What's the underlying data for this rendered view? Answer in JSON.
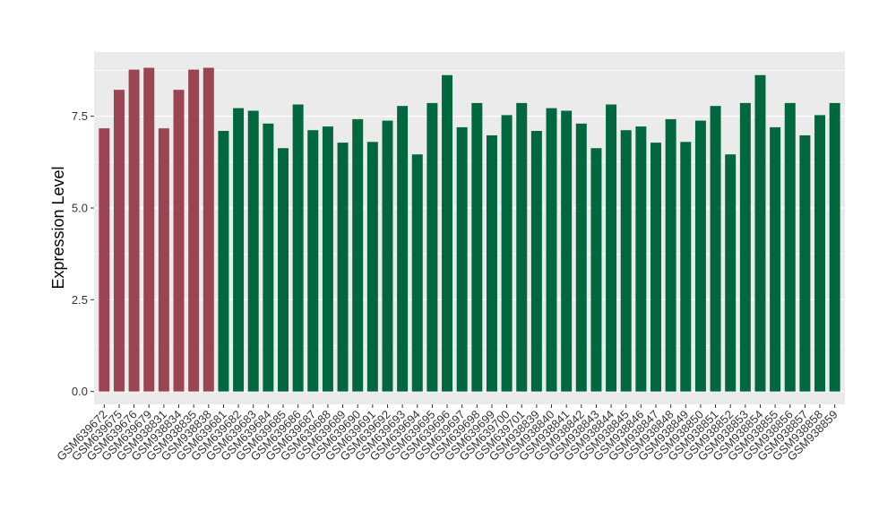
{
  "chart_data": {
    "type": "bar",
    "ylabel": "Expression Level",
    "xlabel": "",
    "ylim": [
      -0.35,
      9.25
    ],
    "yticks": [
      0.0,
      2.5,
      5.0,
      7.5
    ],
    "ytick_labels": [
      "0.0",
      "2.5",
      "5.0",
      "7.5"
    ],
    "grid": true,
    "legend": "none",
    "colors": {
      "group1": "#9b4452",
      "group2": "#00673f",
      "panel": "#ebebeb",
      "grid": "#ffffff"
    },
    "categories": [
      "GSM639672",
      "GSM639675",
      "GSM639676",
      "GSM639679",
      "GSM938831",
      "GSM938834",
      "GSM938835",
      "GSM938838",
      "GSM639681",
      "GSM639682",
      "GSM639683",
      "GSM639684",
      "GSM639685",
      "GSM639686",
      "GSM639687",
      "GSM639688",
      "GSM639689",
      "GSM639690",
      "GSM639691",
      "GSM639692",
      "GSM639693",
      "GSM639694",
      "GSM639695",
      "GSM639696",
      "GSM639697",
      "GSM639698",
      "GSM639699",
      "GSM639700",
      "GSM639701",
      "GSM938839",
      "GSM938840",
      "GSM938841",
      "GSM938842",
      "GSM938843",
      "GSM938844",
      "GSM938845",
      "GSM938846",
      "GSM938847",
      "GSM938848",
      "GSM938849",
      "GSM938850",
      "GSM938851",
      "GSM938852",
      "GSM938853",
      "GSM938854",
      "GSM938855",
      "GSM938856",
      "GSM938857",
      "GSM938858",
      "GSM938859"
    ],
    "values": [
      7.17,
      8.22,
      8.77,
      8.82,
      7.17,
      8.22,
      8.77,
      8.82,
      7.1,
      7.72,
      7.65,
      7.3,
      6.63,
      7.82,
      7.12,
      7.22,
      6.78,
      7.42,
      6.8,
      7.38,
      7.78,
      6.46,
      7.86,
      8.62,
      7.2,
      7.86,
      6.98,
      7.53,
      7.86,
      7.1,
      7.72,
      7.65,
      7.3,
      6.63,
      7.82,
      7.12,
      7.22,
      6.78,
      7.42,
      6.8,
      7.38,
      7.78,
      6.46,
      7.86,
      8.62,
      7.2,
      7.86,
      6.98,
      7.53,
      7.86
    ],
    "groups": [
      "group1",
      "group1",
      "group1",
      "group1",
      "group1",
      "group1",
      "group1",
      "group1",
      "group2",
      "group2",
      "group2",
      "group2",
      "group2",
      "group2",
      "group2",
      "group2",
      "group2",
      "group2",
      "group2",
      "group2",
      "group2",
      "group2",
      "group2",
      "group2",
      "group2",
      "group2",
      "group2",
      "group2",
      "group2",
      "group2",
      "group2",
      "group2",
      "group2",
      "group2",
      "group2",
      "group2",
      "group2",
      "group2",
      "group2",
      "group2",
      "group2",
      "group2",
      "group2",
      "group2",
      "group2",
      "group2",
      "group2",
      "group2",
      "group2",
      "group2"
    ]
  }
}
